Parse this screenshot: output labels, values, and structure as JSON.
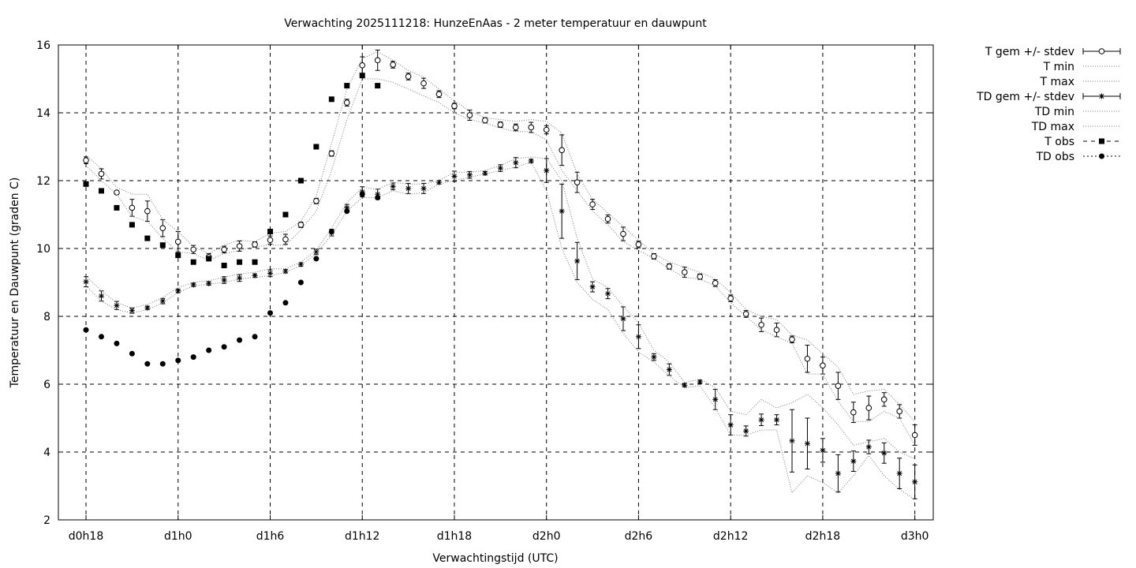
{
  "chart_data": {
    "type": "scatter",
    "title": "Verwachting 2025111218: HunzeEnAas - 2 meter temperatuur en dauwpunt",
    "xlabel": "Verwachtingstijd (UTC)",
    "ylabel": "Temperatuur en Dauwpunt (graden C)",
    "xunit": "hours since d0h0",
    "xlim": [
      16.2,
      73.2
    ],
    "ylim": [
      2,
      16
    ],
    "grid": true,
    "legend_position": "outside-right",
    "x_ticks": [
      {
        "x": 18,
        "label": "d0h18"
      },
      {
        "x": 24,
        "label": "d1h0"
      },
      {
        "x": 30,
        "label": "d1h6"
      },
      {
        "x": 36,
        "label": "d1h12"
      },
      {
        "x": 42,
        "label": "d1h18"
      },
      {
        "x": 48,
        "label": "d2h0"
      },
      {
        "x": 54,
        "label": "d2h6"
      },
      {
        "x": 60,
        "label": "d2h12"
      },
      {
        "x": 66,
        "label": "d2h18"
      },
      {
        "x": 72,
        "label": "d3h0"
      }
    ],
    "y_ticks": [
      {
        "y": 2,
        "label": "2"
      },
      {
        "y": 4,
        "label": "4"
      },
      {
        "y": 6,
        "label": "6"
      },
      {
        "y": 8,
        "label": "8"
      },
      {
        "y": 10,
        "label": "10"
      },
      {
        "y": 12,
        "label": "12"
      },
      {
        "y": 14,
        "label": "14"
      },
      {
        "y": 16,
        "label": "16"
      }
    ],
    "x": [
      18,
      19,
      20,
      21,
      22,
      23,
      24,
      25,
      26,
      27,
      28,
      29,
      30,
      31,
      32,
      33,
      34,
      35,
      36,
      37,
      38,
      39,
      40,
      41,
      42,
      43,
      44,
      45,
      46,
      47,
      48,
      49,
      50,
      51,
      52,
      53,
      54,
      55,
      56,
      57,
      58,
      59,
      60,
      61,
      62,
      63,
      64,
      65,
      66,
      67,
      68,
      69,
      70,
      71,
      72
    ],
    "series": [
      {
        "name": "T gem +/- stdev",
        "style": "errorbar",
        "marker": "circle",
        "y": [
          12.6,
          12.2,
          11.65,
          11.2,
          11.1,
          10.6,
          10.2,
          9.97,
          9.75,
          9.97,
          10.07,
          10.12,
          10.25,
          10.27,
          10.7,
          11.4,
          12.8,
          14.3,
          15.4,
          15.55,
          15.42,
          15.07,
          14.87,
          14.55,
          14.2,
          13.93,
          13.78,
          13.65,
          13.57,
          13.57,
          13.5,
          12.9,
          11.95,
          11.3,
          10.87,
          10.43,
          10.12,
          9.77,
          9.47,
          9.3,
          9.17,
          8.98,
          8.53,
          8.07,
          7.75,
          7.6,
          7.32,
          6.75,
          6.55,
          5.95,
          5.17,
          5.3,
          5.55,
          5.2,
          4.5
        ],
        "err": [
          0.1,
          0.15,
          0.05,
          0.25,
          0.3,
          0.25,
          0.3,
          0.12,
          0.1,
          0.1,
          0.15,
          0.08,
          0.12,
          0.15,
          0.08,
          0.08,
          0.08,
          0.1,
          0.25,
          0.3,
          0.1,
          0.1,
          0.15,
          0.1,
          0.08,
          0.15,
          0.08,
          0.08,
          0.1,
          0.15,
          0.12,
          0.45,
          0.3,
          0.15,
          0.12,
          0.2,
          0.1,
          0.08,
          0.08,
          0.15,
          0.08,
          0.1,
          0.1,
          0.1,
          0.2,
          0.2,
          0.1,
          0.4,
          0.25,
          0.4,
          0.3,
          0.35,
          0.2,
          0.2,
          0.3
        ]
      },
      {
        "name": "T min",
        "style": "dotted",
        "y": [
          12.45,
          12.0,
          11.6,
          10.95,
          10.8,
          10.3,
          9.9,
          9.85,
          9.65,
          9.85,
          9.95,
          10.05,
          10.1,
          10.1,
          10.55,
          11.1,
          12.3,
          13.8,
          15.0,
          15.0,
          14.9,
          14.7,
          14.5,
          14.3,
          14.0,
          13.8,
          13.7,
          13.55,
          13.45,
          13.45,
          13.2,
          12.3,
          11.7,
          11.1,
          10.7,
          10.2,
          9.95,
          9.7,
          9.4,
          9.15,
          9.1,
          8.9,
          8.4,
          8.0,
          7.6,
          7.4,
          7.2,
          6.3,
          6.3,
          5.5,
          4.9,
          4.9,
          5.2,
          5.0,
          4.2
        ]
      },
      {
        "name": "T max",
        "style": "dotted",
        "y": [
          12.75,
          12.35,
          11.8,
          11.6,
          11.6,
          10.85,
          10.5,
          10.05,
          9.85,
          10.1,
          10.25,
          10.2,
          10.45,
          10.5,
          10.8,
          11.55,
          13.1,
          14.7,
          15.6,
          15.8,
          15.55,
          15.25,
          15.05,
          14.7,
          14.35,
          14.05,
          13.85,
          13.8,
          13.75,
          13.8,
          13.75,
          13.4,
          12.2,
          11.45,
          11.05,
          10.65,
          10.25,
          9.85,
          9.6,
          9.45,
          9.3,
          9.1,
          8.7,
          8.2,
          8.0,
          7.9,
          7.45,
          7.3,
          6.9,
          6.5,
          5.7,
          5.8,
          5.85,
          5.4,
          4.9
        ]
      },
      {
        "name": "TD gem +/- stdev",
        "style": "errorbar",
        "marker": "star",
        "y": [
          9.02,
          8.6,
          8.32,
          8.17,
          8.25,
          8.45,
          8.75,
          8.93,
          8.97,
          9.07,
          9.13,
          9.2,
          9.27,
          9.33,
          9.53,
          9.9,
          10.47,
          11.2,
          11.67,
          11.6,
          11.83,
          11.77,
          11.77,
          11.95,
          12.13,
          12.17,
          12.22,
          12.37,
          12.53,
          12.58,
          12.3,
          11.1,
          9.63,
          8.87,
          8.67,
          7.93,
          7.4,
          6.8,
          6.43,
          5.97,
          6.07,
          5.55,
          4.8,
          4.62,
          4.95,
          4.95,
          4.33,
          4.25,
          4.05,
          3.37,
          3.73,
          4.15,
          3.97,
          3.37,
          3.12
        ],
        "err": [
          0.15,
          0.15,
          0.12,
          0.08,
          0.05,
          0.08,
          0.05,
          0.05,
          0.05,
          0.1,
          0.1,
          0.05,
          0.1,
          0.05,
          0.05,
          0.08,
          0.1,
          0.1,
          0.15,
          0.15,
          0.1,
          0.15,
          0.15,
          0.05,
          0.15,
          0.1,
          0.05,
          0.1,
          0.15,
          0.05,
          0.35,
          0.8,
          0.55,
          0.15,
          0.15,
          0.35,
          0.35,
          0.1,
          0.17,
          0.05,
          0.05,
          0.3,
          0.3,
          0.15,
          0.17,
          0.15,
          0.92,
          0.75,
          0.35,
          0.55,
          0.3,
          0.2,
          0.3,
          0.45,
          0.5
        ]
      },
      {
        "name": "TD min",
        "style": "dotted",
        "y": [
          8.9,
          8.45,
          8.2,
          8.1,
          8.2,
          8.4,
          8.7,
          8.9,
          8.95,
          9.0,
          9.1,
          9.15,
          9.2,
          9.3,
          9.5,
          9.85,
          10.4,
          11.1,
          11.5,
          11.5,
          11.7,
          11.6,
          11.65,
          11.9,
          12.0,
          12.1,
          12.2,
          12.3,
          12.4,
          12.55,
          11.7,
          10.0,
          9.0,
          8.5,
          8.2,
          7.5,
          6.95,
          6.65,
          6.25,
          5.9,
          5.95,
          5.3,
          4.5,
          4.5,
          4.65,
          4.65,
          2.8,
          3.3,
          3.1,
          2.8,
          3.3,
          3.9,
          3.3,
          2.9,
          2.6
        ]
      },
      {
        "name": "TD max",
        "style": "dotted",
        "y": [
          9.2,
          8.75,
          8.4,
          8.25,
          8.35,
          8.55,
          8.85,
          9.0,
          9.05,
          9.15,
          9.25,
          9.3,
          9.4,
          9.4,
          9.6,
          9.95,
          10.6,
          11.35,
          11.8,
          11.75,
          11.95,
          11.9,
          11.9,
          12.0,
          12.25,
          12.25,
          12.3,
          12.45,
          12.65,
          12.7,
          12.65,
          12.0,
          10.3,
          9.1,
          8.85,
          8.3,
          7.8,
          7.0,
          6.65,
          6.05,
          6.15,
          5.9,
          5.2,
          5.1,
          5.55,
          5.3,
          5.45,
          5.7,
          5.3,
          4.8,
          4.2,
          4.3,
          4.4,
          4.0,
          3.8
        ]
      },
      {
        "name": "T obs",
        "style": "points",
        "marker": "square",
        "x": [
          18,
          19,
          20,
          21,
          22,
          23,
          24,
          25,
          26,
          27,
          28,
          29,
          30,
          31,
          32,
          33,
          34,
          35,
          36,
          37
        ],
        "y": [
          11.9,
          11.7,
          11.2,
          10.7,
          10.3,
          10.1,
          9.8,
          9.6,
          9.7,
          9.5,
          9.6,
          9.6,
          10.5,
          11.0,
          12.0,
          13.0,
          14.4,
          14.8,
          15.1,
          14.8
        ]
      },
      {
        "name": "TD obs",
        "style": "points",
        "marker": "dot",
        "x": [
          18,
          19,
          20,
          21,
          22,
          23,
          24,
          25,
          26,
          27,
          28,
          29,
          30,
          31,
          32,
          33,
          34,
          35,
          36,
          37
        ],
        "y": [
          7.6,
          7.4,
          7.2,
          6.9,
          6.6,
          6.6,
          6.7,
          6.8,
          7.0,
          7.1,
          7.3,
          7.4,
          8.1,
          8.4,
          9.0,
          9.7,
          10.5,
          11.1,
          11.6,
          11.5
        ]
      }
    ]
  }
}
